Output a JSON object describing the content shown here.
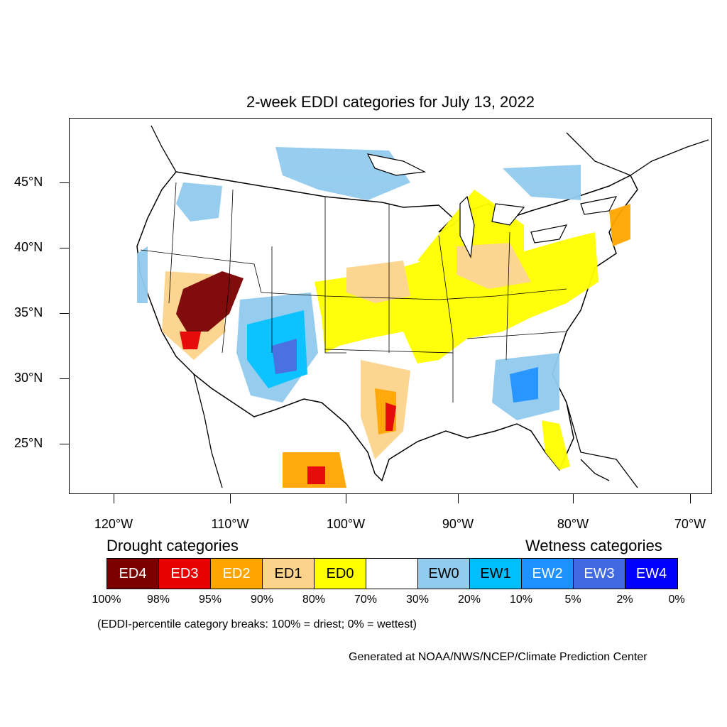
{
  "title": "2-week EDDI categories for July 13, 2022",
  "lat_labels": [
    "45°N",
    "40°N",
    "35°N",
    "30°N",
    "25°N"
  ],
  "lon_labels": [
    "120°W",
    "110°W",
    "100°W",
    "90°W",
    "80°W",
    "70°W"
  ],
  "legend": {
    "drought_heading": "Drought categories",
    "wetness_heading": "Wetness categories",
    "categories": [
      {
        "label": "ED4",
        "color": "#7a0000",
        "text_color": "#ffffff"
      },
      {
        "label": "ED3",
        "color": "#e60000",
        "text_color": "#ffffff"
      },
      {
        "label": "ED2",
        "color": "#ffa500",
        "text_color": "#ffffff"
      },
      {
        "label": "ED1",
        "color": "#fcd38b",
        "text_color": "#000000"
      },
      {
        "label": "ED0",
        "color": "#ffff00",
        "text_color": "#000000"
      },
      {
        "label": "",
        "color": "#ffffff",
        "text_color": "#000000"
      },
      {
        "label": "EW0",
        "color": "#91cbee",
        "text_color": "#000000"
      },
      {
        "label": "EW1",
        "color": "#00bfff",
        "text_color": "#000000"
      },
      {
        "label": "EW2",
        "color": "#1e90ff",
        "text_color": "#ffffff"
      },
      {
        "label": "EW3",
        "color": "#4169e1",
        "text_color": "#ffffff"
      },
      {
        "label": "EW4",
        "color": "#0000ff",
        "text_color": "#ffffff"
      }
    ],
    "percentiles": [
      "100%",
      "98%",
      "95%",
      "90%",
      "80%",
      "70%",
      "30%",
      "20%",
      "10%",
      "5%",
      "2%",
      "0%"
    ]
  },
  "note": "(EDDI-percentile category breaks: 100% = driest; 0% = wettest)",
  "credit": "Generated at NOAA/NWS/NCEP/Climate Prediction Center"
}
